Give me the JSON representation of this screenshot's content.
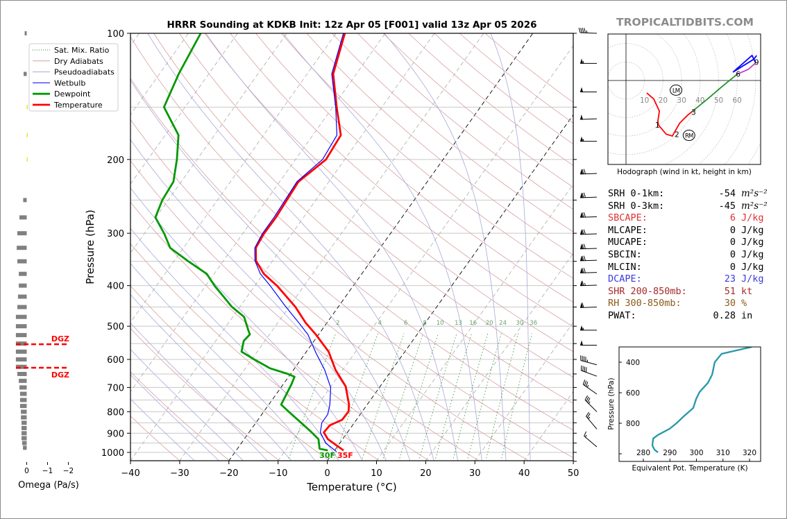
{
  "header": {
    "title": "HRRR Sounding at KDKB Init: 12z Apr 05 [F001] valid 13z Apr 05 2026",
    "watermark": "TROPICALTIDBITS.COM"
  },
  "legend": [
    {
      "label": "Sat. Mix. Ratio",
      "color": "#2e8b2e",
      "style": "dotted"
    },
    {
      "label": "Dry Adiabats",
      "color": "#d8a0a0",
      "style": "solid"
    },
    {
      "label": "Pseudoadiabats",
      "color": "#a8a8d8",
      "style": "solid"
    },
    {
      "label": "Wetbulb",
      "color": "#0000ff",
      "style": "solid"
    },
    {
      "label": "Dewpoint",
      "color": "#009900",
      "style": "thick"
    },
    {
      "label": "Temperature",
      "color": "#ff0000",
      "style": "thick"
    }
  ],
  "surface": {
    "dewpoint_label": "30F",
    "temperature_label": "35F"
  },
  "stats": [
    {
      "label": "SRH 0-1km:",
      "value": "-54",
      "unit": "m²s⁻²",
      "color": "#000000",
      "math": true
    },
    {
      "label": "SRH 0-3km:",
      "value": "-45",
      "unit": "m²s⁻²",
      "color": "#000000",
      "math": true
    },
    {
      "label": "SBCAPE:",
      "value": "6",
      "unit": "J/kg",
      "color": "#e03030"
    },
    {
      "label": "MLCAPE:",
      "value": "0",
      "unit": "J/kg",
      "color": "#000000"
    },
    {
      "label": "MUCAPE:",
      "value": "0",
      "unit": "J/kg",
      "color": "#000000"
    },
    {
      "label": "SBCIN:",
      "value": "0",
      "unit": "J/kg",
      "color": "#000000"
    },
    {
      "label": "MLCIN:",
      "value": "0",
      "unit": "J/kg",
      "color": "#000000"
    },
    {
      "label": "DCAPE:",
      "value": "23",
      "unit": "J/kg",
      "color": "#3a3adc"
    },
    {
      "label": "SHR 200-850mb:",
      "value": "51",
      "unit": "kt",
      "color": "#a52a2a"
    },
    {
      "label": "RH 300-850mb:",
      "value": "30",
      "unit": "%",
      "color": "#8b5a1a"
    },
    {
      "label": "PWAT:",
      "value": "0.28",
      "unit": "in",
      "color": "#000000"
    }
  ],
  "chart_data": [
    {
      "type": "line",
      "name": "skewt",
      "xlabel": "Temperature (°C)",
      "ylabel": "Pressure (hPa)",
      "xlim": [
        -40,
        50
      ],
      "ylim": [
        1050,
        100
      ],
      "xticks": [
        -40,
        -30,
        -20,
        -10,
        0,
        10,
        20,
        30,
        40,
        50
      ],
      "xtick_labels": [
        "−40",
        "−30",
        "−20",
        "−10",
        "0",
        "10",
        "20",
        "30",
        "40",
        "50"
      ],
      "yticks": [
        100,
        200,
        300,
        400,
        500,
        600,
        700,
        800,
        900,
        1000
      ],
      "ytick_labels": [
        "100",
        "200",
        "300",
        "400",
        "500",
        "600",
        "700",
        "800",
        "900",
        "1000"
      ],
      "mixing_ratio_labels": [
        "2",
        "4",
        "6",
        "8",
        "10",
        "13",
        "16",
        "20",
        "24",
        "30",
        "36"
      ],
      "mixing_ratios": [
        2,
        4,
        6,
        8,
        10,
        13,
        16,
        20,
        24,
        30,
        36
      ],
      "legend_position": "top-left",
      "series": [
        {
          "name": "Temperature",
          "color": "#ff0000",
          "p": [
            100,
            125,
            150,
            175,
            200,
            226,
            275,
            301,
            325,
            349,
            375,
            401,
            449,
            490,
            523,
            575,
            635,
            696,
            769,
            799,
            836,
            862,
            896,
            930,
            989
          ],
          "T": [
            -58.2,
            -54.7,
            -49.2,
            -44.3,
            -43.8,
            -46.2,
            -45.6,
            -45.7,
            -45.3,
            -43.4,
            -39.9,
            -35.4,
            -28.8,
            -24.4,
            -20.6,
            -15.5,
            -11.5,
            -7.0,
            -3.7,
            -2.8,
            -2.9,
            -4.6,
            -4.8,
            -3.0,
            1.8
          ]
        },
        {
          "name": "Dewpoint",
          "color": "#009900",
          "p": [
            100,
            125,
            150,
            175,
            200,
            226,
            250,
            275,
            301,
            325,
            349,
            375,
            401,
            425,
            449,
            475,
            510,
            523,
            542,
            575,
            600,
            630,
            650,
            660,
            690,
            769,
            800,
            840,
            890,
            930,
            980,
            989
          ],
          "T": [
            -87.5,
            -86.1,
            -84.3,
            -77.3,
            -74.1,
            -71.6,
            -71.2,
            -70.1,
            -65.9,
            -62.7,
            -57.3,
            -51.5,
            -48.1,
            -44.8,
            -41.7,
            -37.7,
            -35.0,
            -34.0,
            -34.3,
            -33.2,
            -29.5,
            -25.0,
            -20.5,
            -18.8,
            -18.3,
            -17.5,
            -14.9,
            -11.6,
            -7.7,
            -4.9,
            -3.3,
            -1.4
          ]
        },
        {
          "name": "Wetbulb",
          "color": "#0000ff",
          "p": [
            100,
            125,
            150,
            175,
            200,
            226,
            275,
            301,
            325,
            349,
            375,
            401,
            445,
            490,
            523,
            580,
            635,
            700,
            769,
            812,
            850,
            896,
            950,
            995
          ],
          "T": [
            -58.5,
            -55.0,
            -49.4,
            -45.1,
            -44.5,
            -46.5,
            -46.0,
            -46.0,
            -45.5,
            -43.6,
            -40.6,
            -36.8,
            -31.2,
            -25.8,
            -22.2,
            -17.8,
            -13.7,
            -9.9,
            -7.6,
            -6.6,
            -6.6,
            -5.5,
            -2.9,
            0.5
          ]
        }
      ],
      "dgz_label": "DGZ",
      "dgz_pressures": [
        552,
        628
      ]
    },
    {
      "type": "bar",
      "name": "omega",
      "xlabel": "Omega (Pa/s)",
      "xticks": [
        0,
        -1,
        -2
      ],
      "xtick_labels": [
        "0",
        "−1",
        "−2"
      ],
      "p": [
        100,
        125,
        150,
        175,
        200,
        250,
        275,
        300,
        325,
        350,
        375,
        400,
        425,
        450,
        475,
        500,
        525,
        550,
        575,
        600,
        625,
        650,
        675,
        700,
        725,
        750,
        775,
        800,
        825,
        850,
        875,
        900,
        925,
        950,
        975
      ],
      "omega": [
        0.1,
        0.15,
        -0.04,
        -0.05,
        -0.04,
        0.17,
        0.35,
        0.45,
        0.48,
        0.45,
        0.38,
        0.38,
        0.42,
        0.45,
        0.52,
        0.52,
        0.52,
        0.52,
        0.52,
        0.52,
        0.52,
        0.45,
        0.38,
        0.35,
        0.32,
        0.32,
        0.32,
        0.28,
        0.28,
        0.25,
        0.25,
        0.25,
        0.25,
        0.22,
        0.18
      ]
    },
    {
      "type": "line",
      "name": "hodograph",
      "caption": "Hodograph (wind in kt, height in km)",
      "ring_labels": [
        "10",
        "20",
        "30",
        "40",
        "50",
        "60"
      ],
      "segments": [
        {
          "color": "#ff0000",
          "u": [
            11.2,
            15,
            18,
            17.2,
            17.5,
            21.7,
            25,
            29,
            33,
            36
          ],
          "v": [
            -6.7,
            -10,
            -16.5,
            -22,
            -24,
            -29,
            -30,
            -23,
            -19,
            -16.5
          ]
        },
        {
          "color": "#22922a",
          "u": [
            36,
            44,
            51.7,
            60
          ],
          "v": [
            -16.5,
            -10,
            -3.4,
            3.4
          ]
        },
        {
          "color": "#c040c0",
          "u": [
            60,
            66,
            70
          ],
          "v": [
            3.4,
            6,
            9.5
          ]
        },
        {
          "color": "#0000ff",
          "u": [
            70,
            68,
            57.7,
            69,
            70.5
          ],
          "v": [
            9.5,
            13.5,
            4.5,
            11.5,
            13.5
          ]
        }
      ],
      "height_labels": [
        {
          "text": "1",
          "u": 17,
          "v": -24
        },
        {
          "text": "2",
          "u": 27.5,
          "v": -29
        },
        {
          "text": "3",
          "u": 36.5,
          "v": -17
        },
        {
          "text": "6",
          "u": 60.5,
          "v": 3.5
        },
        {
          "text": "9",
          "u": 70.5,
          "v": 10
        }
      ],
      "motions": [
        {
          "text": "LM",
          "u": 27,
          "v": -5.2
        },
        {
          "text": "RM",
          "u": 34,
          "v": -29.6
        }
      ]
    },
    {
      "type": "line",
      "name": "theta_e",
      "xlabel": "Equivalent Pot. Temperature (K)",
      "ylabel": "Pressure (hPa)",
      "xlim": [
        271,
        324
      ],
      "ylim": [
        1050,
        300
      ],
      "xticks": [
        280,
        290,
        300,
        310,
        320
      ],
      "xtick_labels": [
        "280",
        "290",
        "300",
        "310",
        "320"
      ],
      "yticks": [
        400,
        600,
        800,
        1000
      ],
      "ytick_labels": [
        "400",
        "600",
        "800",
        ""
      ],
      "color": "#2a9aaa",
      "theta_e": [
        320.8,
        309.5,
        306.9,
        305.9,
        304.3,
        301.2,
        299.9,
        298.8,
        295.2,
        292.5,
        289.9,
        285.5,
        283.7,
        283.4,
        284.2,
        285.5
      ],
      "p": [
        300,
        345,
        400,
        482,
        536,
        595,
        641,
        700,
        755,
        800,
        836,
        877,
        900,
        945,
        973,
        991
      ]
    },
    {
      "type": "barbs",
      "name": "wind_barbs",
      "p": [
        100,
        118,
        138,
        160,
        181,
        216,
        246,
        274,
        301,
        326,
        348,
        372,
        399,
        450,
        511,
        555,
        618,
        658,
        726,
        800,
        880,
        970
      ],
      "speed_kt": [
        45,
        55,
        50,
        50,
        55,
        70,
        70,
        70,
        70,
        70,
        70,
        70,
        65,
        60,
        55,
        50,
        45,
        40,
        35,
        35,
        25,
        15
      ],
      "direction_deg": [
        272,
        270,
        270,
        268,
        270,
        268,
        268,
        268,
        268,
        268,
        268,
        268,
        268,
        268,
        270,
        270,
        285,
        290,
        305,
        315,
        320,
        310
      ]
    }
  ]
}
